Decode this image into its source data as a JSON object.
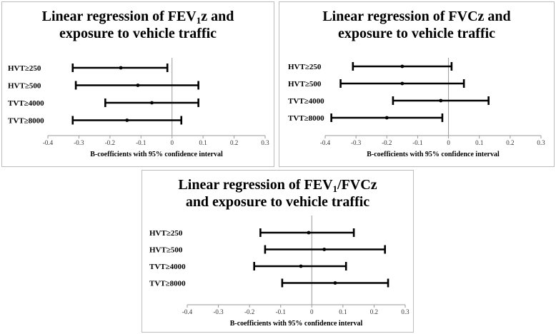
{
  "chart_data": [
    {
      "type": "forest",
      "title_lines": [
        [
          "Linear regression of FEV",
          "1",
          "z and"
        ],
        [
          "exposure to vehicle traffic"
        ]
      ],
      "xlabel": "B-coefficients with 95% confidence interval",
      "xlim": [
        -0.4,
        0.3
      ],
      "xticks": [
        -0.4,
        -0.3,
        -0.2,
        -0.1,
        0,
        0.1,
        0.2,
        0.3
      ],
      "rows": [
        {
          "label": "HVT≥250",
          "estimate": -0.165,
          "lower": -0.32,
          "upper": -0.015
        },
        {
          "label": "HVT≥500",
          "estimate": -0.11,
          "lower": -0.31,
          "upper": 0.085
        },
        {
          "label": "TVT≥4000",
          "estimate": -0.065,
          "lower": -0.215,
          "upper": 0.085
        },
        {
          "label": "TVT≥8000",
          "estimate": -0.145,
          "lower": -0.32,
          "upper": 0.03
        }
      ]
    },
    {
      "type": "forest",
      "title_lines": [
        [
          "Linear regression of FVCz and"
        ],
        [
          "exposure to vehicle traffic"
        ]
      ],
      "xlabel": "B-coefficients with 95% confidence interval",
      "xlim": [
        -0.4,
        0.3
      ],
      "xticks": [
        -0.4,
        -0.3,
        -0.2,
        -0.1,
        0,
        0.1,
        0.2,
        0.3
      ],
      "rows": [
        {
          "label": "HVT≥250",
          "estimate": -0.15,
          "lower": -0.31,
          "upper": 0.01
        },
        {
          "label": "HVT≥500",
          "estimate": -0.15,
          "lower": -0.35,
          "upper": 0.05
        },
        {
          "label": "TVT≥4000",
          "estimate": -0.025,
          "lower": -0.18,
          "upper": 0.13
        },
        {
          "label": "TVT≥8000",
          "estimate": -0.2,
          "lower": -0.38,
          "upper": -0.02
        }
      ]
    },
    {
      "type": "forest",
      "title_lines": [
        [
          "Linear regression of FEV",
          "1",
          "/FVCz"
        ],
        [
          "and exposure to vehicle traffic"
        ]
      ],
      "xlabel": "B-coefficients with 95% confidence interval",
      "xlim": [
        -0.4,
        0.3
      ],
      "xticks": [
        -0.4,
        -0.3,
        -0.2,
        -0.1,
        0,
        0.1,
        0.2,
        0.3
      ],
      "rows": [
        {
          "label": "HVT≥250",
          "estimate": -0.01,
          "lower": -0.165,
          "upper": 0.135
        },
        {
          "label": "HVT≥500",
          "estimate": 0.04,
          "lower": -0.15,
          "upper": 0.235
        },
        {
          "label": "TVT≥4000",
          "estimate": -0.035,
          "lower": -0.185,
          "upper": 0.11
        },
        {
          "label": "TVT≥8000",
          "estimate": 0.075,
          "lower": -0.095,
          "upper": 0.245
        }
      ]
    }
  ]
}
